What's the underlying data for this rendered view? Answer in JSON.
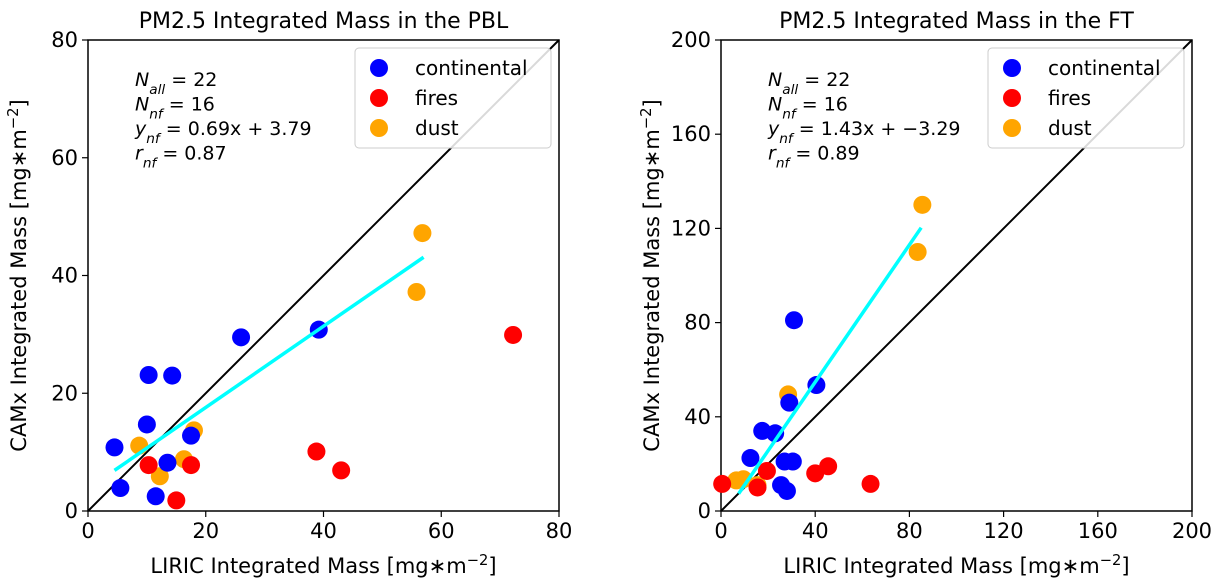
{
  "chart_data": [
    {
      "type": "scatter",
      "title": "PM2.5 Integrated Mass in the PBL",
      "xlabel": "LIRIC Integrated Mass [mg$*$m$^{-2}$]",
      "ylabel": "CAMx Integrated Mass [mg$*$m$^{-2}$]",
      "xlim": [
        0,
        80
      ],
      "ylim": [
        0,
        80
      ],
      "xticks": [
        "0",
        "20",
        "40",
        "60",
        "80"
      ],
      "yticks": [
        "0",
        "20",
        "40",
        "60",
        "80"
      ],
      "legend_position": "top-right",
      "annotations": [
        "N_all = 22",
        "N_nf = 16",
        "y_nf = 0.69x + 3.79",
        "r_nf = 0.87"
      ],
      "one_to_one_line": true,
      "fit_line": {
        "x": [
          4.5,
          57
        ],
        "y": [
          6.9,
          43.1
        ],
        "color": "#00ffff"
      },
      "series": [
        {
          "name": "continental",
          "color": "#0000ff",
          "x": [
            4.5,
            5.5,
            10,
            10.3,
            11.5,
            13.5,
            14.3,
            17.5,
            26,
            39.2
          ],
          "y": [
            10.8,
            3.9,
            14.7,
            23.1,
            2.5,
            8.2,
            23,
            12.8,
            29.5,
            30.8
          ]
        },
        {
          "name": "fires",
          "color": "#ff0000",
          "x": [
            10.3,
            15,
            17.5,
            38.8,
            43,
            72.2
          ],
          "y": [
            7.8,
            1.8,
            7.8,
            10.1,
            6.9,
            29.9
          ]
        },
        {
          "name": "dust",
          "color": "#ffa500",
          "x": [
            8.7,
            12.2,
            16.3,
            18,
            55.8,
            56.8
          ],
          "y": [
            11.1,
            5.9,
            8.8,
            13.7,
            37.2,
            47.2
          ]
        }
      ]
    },
    {
      "type": "scatter",
      "title": "PM2.5 Integrated Mass in the FT",
      "xlabel": "LIRIC Integrated Mass [mg$*$m$^{-2}$]",
      "ylabel": "CAMx Integrated Mass [mg$*$m$^{-2}$]",
      "xlim": [
        0,
        200
      ],
      "ylim": [
        0,
        200
      ],
      "xticks": [
        "0",
        "40",
        "80",
        "120",
        "160",
        "200"
      ],
      "yticks": [
        "0",
        "40",
        "80",
        "120",
        "160",
        "200"
      ],
      "legend_position": "top-right",
      "annotations": [
        "N_all = 22",
        "N_nf = 16",
        "y_nf = 1.43x + −3.29",
        "r_nf = 0.89"
      ],
      "one_to_one_line": true,
      "fit_line": {
        "x": [
          7.5,
          85
        ],
        "y": [
          7.4,
          120.3
        ],
        "color": "#00ffff"
      },
      "series": [
        {
          "name": "continental",
          "color": "#0000ff",
          "x": [
            12.5,
            17.5,
            23,
            25.5,
            27,
            28,
            29,
            30.5,
            31,
            40.5
          ],
          "y": [
            22.5,
            34,
            33,
            11,
            21,
            8.5,
            46,
            21,
            81,
            53.5
          ]
        },
        {
          "name": "fires",
          "color": "#ff0000",
          "x": [
            0.5,
            15.5,
            19.5,
            40,
            45.5,
            63.5
          ],
          "y": [
            11.5,
            10,
            17,
            16,
            19,
            11.5
          ]
        },
        {
          "name": "dust",
          "color": "#ffa500",
          "x": [
            6.5,
            9.5,
            15.5,
            28.5,
            83.5,
            85.5
          ],
          "y": [
            13,
            13.5,
            11,
            49.5,
            110,
            130
          ]
        }
      ]
    }
  ]
}
